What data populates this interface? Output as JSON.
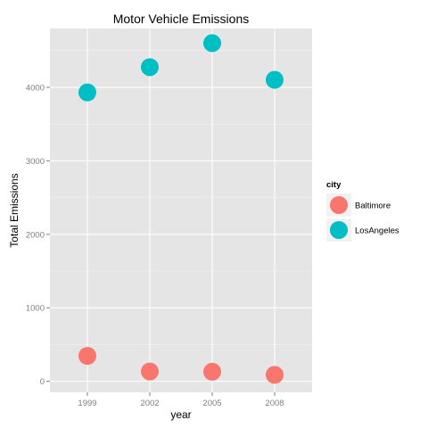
{
  "chart_data": {
    "type": "scatter",
    "title": "Motor Vehicle Emissions",
    "xlabel": "year",
    "ylabel": "Total Emissions",
    "categories": [
      "1999",
      "2002",
      "2005",
      "2008"
    ],
    "ylim": [
      -150,
      4800
    ],
    "yticks": [
      0,
      1000,
      2000,
      3000,
      4000
    ],
    "grid": true,
    "legend": {
      "title": "city",
      "position": "right"
    },
    "series": [
      {
        "name": "Baltimore",
        "color": "#F8766D",
        "values": [
          346,
          134,
          130,
          88
        ]
      },
      {
        "name": "LosAngeles",
        "color": "#00BFC4",
        "values": [
          3931,
          4274,
          4601,
          4102
        ]
      }
    ]
  }
}
